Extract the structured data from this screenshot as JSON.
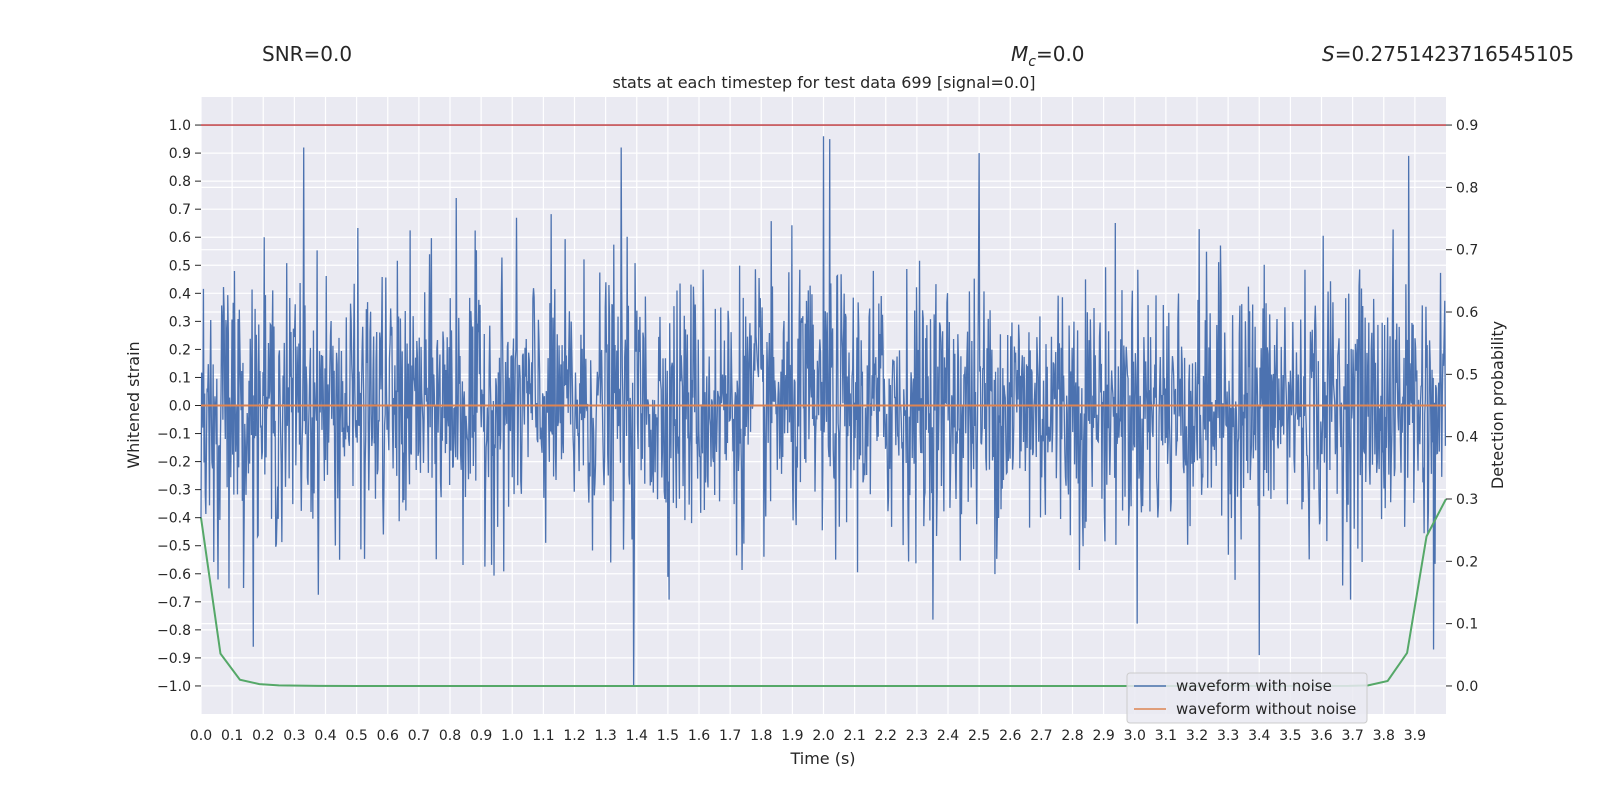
{
  "header": {
    "snr_label": "SNR=0.0",
    "mc_symbol": "M",
    "mc_sub": "c",
    "mc_value": "=0.0",
    "s_symbol": "S",
    "s_value": "=0.2751423716545105"
  },
  "chart_data": {
    "type": "line",
    "title": "stats at each timestep for test data 699 [signal=0.0]",
    "xlabel": "Time (s)",
    "ylabel": "Whitened strain",
    "y2label": "Detection probability",
    "xlim": [
      0.0,
      4.0
    ],
    "ylim": [
      -1.1,
      1.1
    ],
    "y2lim": [
      -0.045,
      0.945
    ],
    "x_ticks": [
      "0.0",
      "0.1",
      "0.2",
      "0.3",
      "0.4",
      "0.5",
      "0.6",
      "0.7",
      "0.8",
      "0.9",
      "1.0",
      "1.1",
      "1.2",
      "1.3",
      "1.4",
      "1.5",
      "1.6",
      "1.7",
      "1.8",
      "1.9",
      "2.0",
      "2.1",
      "2.2",
      "2.3",
      "2.4",
      "2.5",
      "2.6",
      "2.7",
      "2.8",
      "2.9",
      "3.0",
      "3.1",
      "3.2",
      "3.3",
      "3.4",
      "3.5",
      "3.6",
      "3.7",
      "3.8",
      "3.9"
    ],
    "y_ticks": [
      "−1.0",
      "−0.9",
      "−0.8",
      "−0.7",
      "−0.6",
      "−0.5",
      "−0.4",
      "−0.3",
      "−0.2",
      "−0.1",
      "0.0",
      "0.1",
      "0.2",
      "0.3",
      "0.4",
      "0.5",
      "0.6",
      "0.7",
      "0.8",
      "0.9",
      "1.0"
    ],
    "y2_ticks": [
      "0.0",
      "0.1",
      "0.2",
      "0.3",
      "0.4",
      "0.5",
      "0.6",
      "0.7",
      "0.8",
      "0.9"
    ],
    "grid": true,
    "legend_position": "lower-right",
    "threshold": {
      "axis": "right",
      "value": 0.9,
      "color": "#c44e52"
    },
    "series": [
      {
        "name": "waveform with noise",
        "color": "#4c72b0",
        "axis": "left",
        "note": "dense noise trace, approx. 2048 samples",
        "peaks": [
          {
            "x": 0.33,
            "y": 0.92
          },
          {
            "x": 0.82,
            "y": 0.74
          },
          {
            "x": 1.35,
            "y": 0.92
          },
          {
            "x": 1.39,
            "y": -1.0
          },
          {
            "x": 2.0,
            "y": 0.96
          },
          {
            "x": 2.02,
            "y": 0.95
          },
          {
            "x": 2.5,
            "y": 0.9
          },
          {
            "x": 3.4,
            "y": -0.89
          },
          {
            "x": 3.88,
            "y": 0.89
          },
          {
            "x": 3.96,
            "y": -0.87
          }
        ]
      },
      {
        "name": "waveform without noise",
        "color": "#dd8452",
        "axis": "left",
        "x": [
          0.0,
          4.0
        ],
        "y": [
          0.0,
          0.0
        ]
      },
      {
        "name": "",
        "color": "#55a868",
        "axis": "right",
        "x": [
          0.0,
          0.0625,
          0.125,
          0.1875,
          0.25,
          0.3125,
          0.375,
          0.5,
          1.0,
          2.0,
          3.0,
          3.5,
          3.6875,
          3.75,
          3.8125,
          3.875,
          3.9375,
          4.0
        ],
        "y": [
          0.27,
          0.052,
          0.01,
          0.003,
          0.001,
          0.0005,
          0.0002,
          0.0,
          0.0,
          0.0,
          0.0,
          0.0,
          0.0002,
          0.001,
          0.008,
          0.053,
          0.24,
          0.3
        ]
      }
    ]
  }
}
